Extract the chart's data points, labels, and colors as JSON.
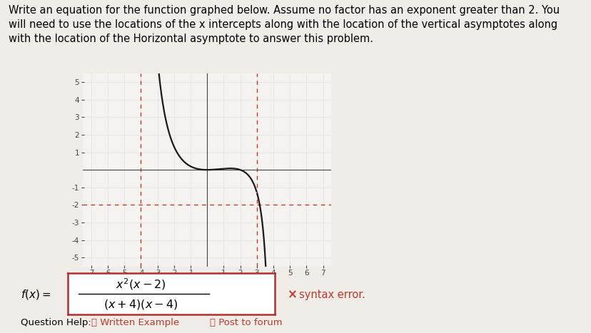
{
  "title_text": "Write an equation for the function graphed below. Assume no factor has an exponent greater than 2. You\nwill need to use the locations of the x intercepts along with the location of the vertical asymptotes along\nwith the location of the Horizontal asymptote to answer this problem.",
  "title_fontsize": 10.5,
  "bg_color": "#f0ece8",
  "graph_bg": "#f5f3f0",
  "axis_color": "#444444",
  "asymptote_color": "#c0392b",
  "curve_color": "#1a1a1a",
  "xlim": [
    -7.5,
    7.5
  ],
  "ylim": [
    -5.5,
    5.5
  ],
  "xticks": [
    -7,
    -6,
    -5,
    -4,
    -3,
    -2,
    -1,
    1,
    2,
    3,
    4,
    5,
    6,
    7
  ],
  "yticks": [
    -5,
    -4,
    -3,
    -2,
    -1,
    1,
    2,
    3,
    4,
    5
  ],
  "va_x1": -4,
  "va_x2": 3,
  "ha_y": -2,
  "numerator": "$x^{2}(x-2)$",
  "denominator": "$(x+4)(x-4)$",
  "syntax_error_text": "syntax error.",
  "question_help_text": "Question Help:",
  "written_example_text": "Written Example",
  "post_forum_text": "Post to forum"
}
